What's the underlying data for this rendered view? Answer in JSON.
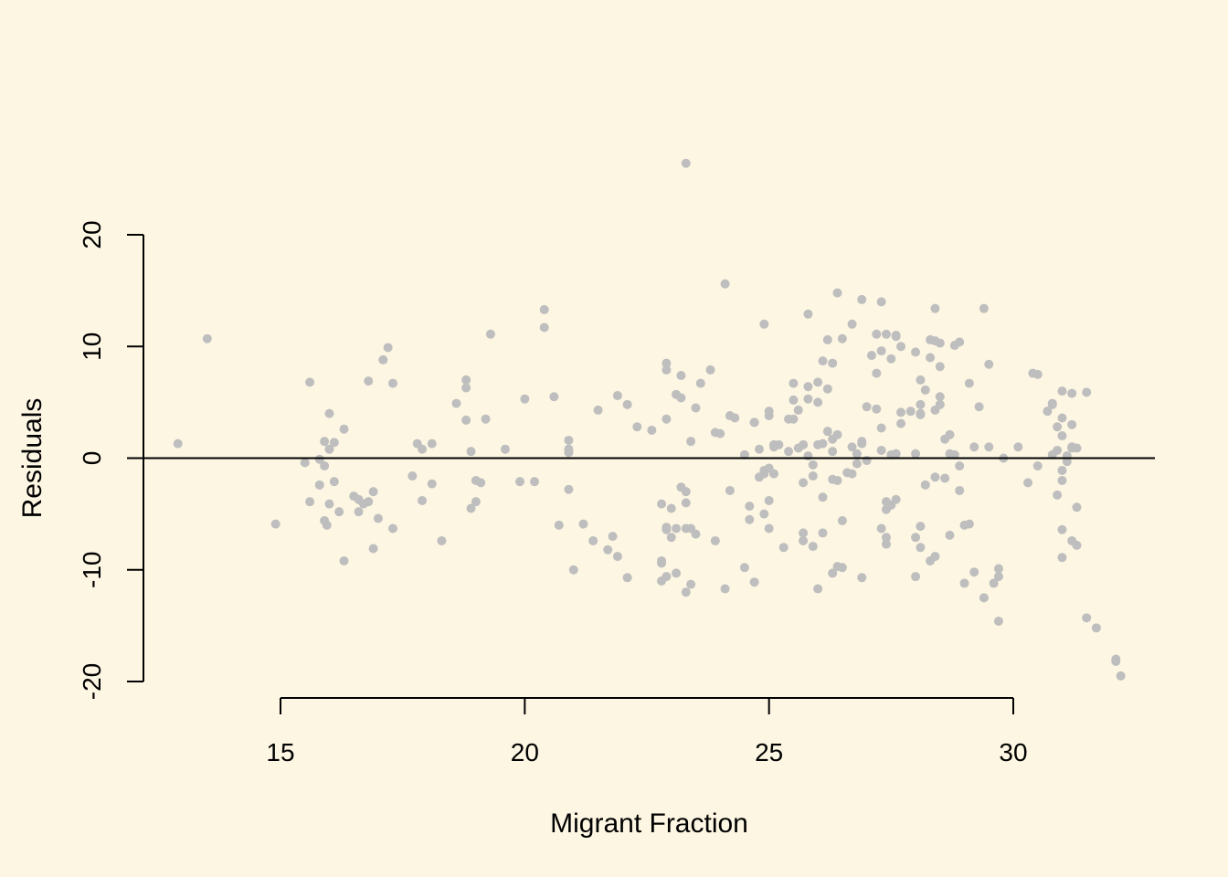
{
  "chart_data": {
    "type": "scatter",
    "title": "",
    "xlabel": "Migrant Fraction",
    "ylabel": "Residuals",
    "x_ticks": [
      15,
      20,
      25,
      30
    ],
    "y_ticks": [
      -20,
      -10,
      0,
      10,
      20
    ],
    "x_tick_labels": [
      "15",
      "20",
      "25",
      "30"
    ],
    "y_tick_labels": [
      "-20",
      "-10",
      "0",
      "10",
      "20"
    ],
    "xlim": [
      12.2,
      32.9
    ],
    "ylim": [
      -21.6,
      27.2
    ],
    "reference_line_y": 0,
    "point_color": "#bebebe",
    "background_color": "#fdf6e3",
    "grid": false,
    "points": [
      [
        12.9,
        1.3
      ],
      [
        13.5,
        10.7
      ],
      [
        14.9,
        -5.9
      ],
      [
        15.5,
        -0.4
      ],
      [
        15.6,
        6.8
      ],
      [
        15.6,
        -3.9
      ],
      [
        15.8,
        -0.1
      ],
      [
        15.8,
        -2.4
      ],
      [
        15.9,
        -0.7
      ],
      [
        15.9,
        1.5
      ],
      [
        15.9,
        -5.6
      ],
      [
        16.0,
        0.8
      ],
      [
        16.0,
        4.0
      ],
      [
        16.0,
        0.8
      ],
      [
        16.0,
        -4.1
      ],
      [
        16.1,
        -2.1
      ],
      [
        16.1,
        1.4
      ],
      [
        16.2,
        -4.8
      ],
      [
        16.3,
        2.6
      ],
      [
        16.3,
        -9.2
      ],
      [
        15.95,
        -6.0
      ],
      [
        16.5,
        -3.4
      ],
      [
        16.6,
        -3.7
      ],
      [
        16.6,
        -4.8
      ],
      [
        16.7,
        -4.1
      ],
      [
        16.8,
        -3.9
      ],
      [
        16.8,
        6.9
      ],
      [
        16.9,
        -3.0
      ],
      [
        16.9,
        -8.1
      ],
      [
        17.0,
        -5.4
      ],
      [
        17.1,
        8.8
      ],
      [
        17.2,
        9.9
      ],
      [
        17.3,
        -6.3
      ],
      [
        17.3,
        6.7
      ],
      [
        17.7,
        -1.6
      ],
      [
        17.8,
        1.3
      ],
      [
        17.9,
        0.8
      ],
      [
        17.9,
        -3.8
      ],
      [
        18.1,
        -2.3
      ],
      [
        18.1,
        1.3
      ],
      [
        18.3,
        -7.4
      ],
      [
        18.6,
        4.9
      ],
      [
        18.8,
        7.0
      ],
      [
        18.8,
        3.4
      ],
      [
        18.8,
        6.3
      ],
      [
        18.9,
        -4.5
      ],
      [
        18.9,
        0.6
      ],
      [
        19.0,
        -2.0
      ],
      [
        19.0,
        -3.9
      ],
      [
        19.1,
        -2.2
      ],
      [
        19.2,
        3.5
      ],
      [
        19.3,
        11.1
      ],
      [
        19.6,
        0.8
      ],
      [
        19.9,
        -2.1
      ],
      [
        20.0,
        5.3
      ],
      [
        20.2,
        -2.1
      ],
      [
        20.4,
        11.7
      ],
      [
        20.4,
        13.3
      ],
      [
        20.6,
        5.5
      ],
      [
        20.7,
        -6.0
      ],
      [
        20.9,
        1.6
      ],
      [
        20.9,
        0.5
      ],
      [
        20.9,
        0.8
      ],
      [
        20.9,
        -2.8
      ],
      [
        21.0,
        -10.0
      ],
      [
        21.2,
        -5.9
      ],
      [
        21.4,
        -7.4
      ],
      [
        21.5,
        4.3
      ],
      [
        21.7,
        -8.2
      ],
      [
        21.8,
        -7.0
      ],
      [
        21.9,
        5.6
      ],
      [
        21.9,
        -8.8
      ],
      [
        22.1,
        4.8
      ],
      [
        22.1,
        -10.7
      ],
      [
        22.3,
        2.8
      ],
      [
        22.6,
        2.5
      ],
      [
        22.8,
        -9.2
      ],
      [
        22.8,
        -9.4
      ],
      [
        22.8,
        -11.0
      ],
      [
        22.8,
        -4.1
      ],
      [
        22.9,
        -6.2
      ],
      [
        22.9,
        8.5
      ],
      [
        22.9,
        7.9
      ],
      [
        22.9,
        3.5
      ],
      [
        22.9,
        -10.6
      ],
      [
        22.9,
        -6.4
      ],
      [
        23.0,
        -7.1
      ],
      [
        23.0,
        -4.5
      ],
      [
        23.1,
        -10.3
      ],
      [
        23.1,
        -6.3
      ],
      [
        23.1,
        5.7
      ],
      [
        23.2,
        7.4
      ],
      [
        23.2,
        5.4
      ],
      [
        23.2,
        -2.6
      ],
      [
        23.3,
        -6.3
      ],
      [
        23.3,
        -3.0
      ],
      [
        23.3,
        -12.0
      ],
      [
        23.3,
        -4.0
      ],
      [
        23.3,
        26.4
      ],
      [
        23.4,
        -6.3
      ],
      [
        23.4,
        -11.3
      ],
      [
        23.4,
        1.5
      ],
      [
        23.5,
        4.5
      ],
      [
        23.5,
        -6.8
      ],
      [
        23.6,
        6.7
      ],
      [
        23.8,
        7.9
      ],
      [
        23.9,
        2.3
      ],
      [
        23.9,
        -7.4
      ],
      [
        24.0,
        2.2
      ],
      [
        24.1,
        15.6
      ],
      [
        24.1,
        -11.7
      ],
      [
        24.2,
        -2.9
      ],
      [
        24.2,
        3.8
      ],
      [
        24.3,
        3.6
      ],
      [
        24.5,
        -9.8
      ],
      [
        24.5,
        0.3
      ],
      [
        24.6,
        -5.5
      ],
      [
        24.6,
        -4.3
      ],
      [
        24.7,
        3.2
      ],
      [
        24.7,
        -11.1
      ],
      [
        24.7,
        3.2
      ],
      [
        24.8,
        -1.7
      ],
      [
        24.8,
        0.8
      ],
      [
        24.9,
        12.0
      ],
      [
        24.9,
        -1.1
      ],
      [
        24.9,
        -5.0
      ],
      [
        24.9,
        -1.4
      ],
      [
        25.0,
        -0.9
      ],
      [
        25.0,
        3.8
      ],
      [
        25.0,
        4.2
      ],
      [
        25.0,
        -3.8
      ],
      [
        25.0,
        -6.3
      ],
      [
        25.1,
        -1.4
      ],
      [
        25.1,
        1.2
      ],
      [
        25.1,
        1.0
      ],
      [
        25.2,
        1.2
      ],
      [
        25.3,
        -8.0
      ],
      [
        25.4,
        0.6
      ],
      [
        25.4,
        3.5
      ],
      [
        25.5,
        6.7
      ],
      [
        25.5,
        5.2
      ],
      [
        25.5,
        3.5
      ],
      [
        25.6,
        4.3
      ],
      [
        25.6,
        0.9
      ],
      [
        25.7,
        1.2
      ],
      [
        25.7,
        -2.2
      ],
      [
        25.7,
        -6.7
      ],
      [
        25.7,
        -7.4
      ],
      [
        25.8,
        12.9
      ],
      [
        25.8,
        6.4
      ],
      [
        25.8,
        5.3
      ],
      [
        25.8,
        0.2
      ],
      [
        25.9,
        -1.6
      ],
      [
        25.9,
        -0.6
      ],
      [
        25.9,
        -7.9
      ],
      [
        26.0,
        6.8
      ],
      [
        26.0,
        5.0
      ],
      [
        26.0,
        -11.7
      ],
      [
        26.0,
        1.2
      ],
      [
        26.1,
        1.3
      ],
      [
        26.1,
        -6.7
      ],
      [
        26.1,
        -3.5
      ],
      [
        26.1,
        8.7
      ],
      [
        26.2,
        6.2
      ],
      [
        26.2,
        10.6
      ],
      [
        26.2,
        2.4
      ],
      [
        26.3,
        -10.3
      ],
      [
        26.3,
        8.5
      ],
      [
        26.3,
        0.6
      ],
      [
        26.3,
        -1.9
      ],
      [
        26.3,
        1.7
      ],
      [
        26.4,
        -2.0
      ],
      [
        26.4,
        2.1
      ],
      [
        26.4,
        14.8
      ],
      [
        26.4,
        -9.7
      ],
      [
        26.5,
        -9.8
      ],
      [
        26.5,
        -5.6
      ],
      [
        26.5,
        10.7
      ],
      [
        26.6,
        -1.3
      ],
      [
        26.7,
        12.0
      ],
      [
        26.7,
        1.0
      ],
      [
        26.7,
        -1.4
      ],
      [
        26.8,
        -0.5
      ],
      [
        26.8,
        0.4
      ],
      [
        26.9,
        1.3
      ],
      [
        26.9,
        14.2
      ],
      [
        26.9,
        1.5
      ],
      [
        26.9,
        -10.7
      ],
      [
        27.0,
        -0.2
      ],
      [
        27.0,
        4.6
      ],
      [
        27.1,
        9.2
      ],
      [
        27.2,
        7.6
      ],
      [
        27.2,
        4.4
      ],
      [
        27.2,
        11.1
      ],
      [
        27.3,
        14.0
      ],
      [
        27.3,
        2.7
      ],
      [
        27.3,
        0.7
      ],
      [
        27.3,
        -6.3
      ],
      [
        27.3,
        9.6
      ],
      [
        27.4,
        -7.1
      ],
      [
        27.4,
        -7.7
      ],
      [
        27.4,
        -4.6
      ],
      [
        27.4,
        -3.9
      ],
      [
        27.4,
        11.1
      ],
      [
        27.5,
        8.9
      ],
      [
        27.5,
        0.3
      ],
      [
        27.5,
        -4.2
      ],
      [
        27.6,
        10.9
      ],
      [
        27.6,
        11.0
      ],
      [
        27.6,
        0.4
      ],
      [
        27.6,
        -3.7
      ],
      [
        27.7,
        3.1
      ],
      [
        27.7,
        4.1
      ],
      [
        27.7,
        10.0
      ],
      [
        27.9,
        4.2
      ],
      [
        28.0,
        9.5
      ],
      [
        28.0,
        0.4
      ],
      [
        28.0,
        -10.6
      ],
      [
        28.0,
        -7.1
      ],
      [
        28.1,
        -6.1
      ],
      [
        28.1,
        4.8
      ],
      [
        28.1,
        7.0
      ],
      [
        28.1,
        3.9
      ],
      [
        28.1,
        4.0
      ],
      [
        28.1,
        -8.0
      ],
      [
        28.2,
        -2.4
      ],
      [
        28.2,
        6.1
      ],
      [
        28.3,
        10.6
      ],
      [
        28.3,
        -9.2
      ],
      [
        28.3,
        9.0
      ],
      [
        28.4,
        -1.7
      ],
      [
        28.4,
        -8.8
      ],
      [
        28.4,
        4.3
      ],
      [
        28.4,
        13.4
      ],
      [
        28.4,
        10.5
      ],
      [
        28.5,
        5.5
      ],
      [
        28.5,
        10.3
      ],
      [
        28.5,
        8.2
      ],
      [
        28.5,
        4.8
      ],
      [
        28.6,
        -1.8
      ],
      [
        28.6,
        1.7
      ],
      [
        28.7,
        -6.9
      ],
      [
        28.7,
        2.1
      ],
      [
        28.7,
        0.4
      ],
      [
        28.8,
        0.3
      ],
      [
        28.8,
        10.1
      ],
      [
        28.9,
        10.4
      ],
      [
        28.9,
        -2.9
      ],
      [
        28.9,
        -0.7
      ],
      [
        29.0,
        -6.0
      ],
      [
        29.0,
        -11.2
      ],
      [
        29.1,
        -5.9
      ],
      [
        29.1,
        6.7
      ],
      [
        29.2,
        1.0
      ],
      [
        29.2,
        -10.2
      ],
      [
        29.3,
        4.6
      ],
      [
        29.4,
        -12.5
      ],
      [
        29.4,
        13.4
      ],
      [
        29.5,
        1.0
      ],
      [
        29.5,
        8.4
      ],
      [
        29.6,
        -11.2
      ],
      [
        29.7,
        -10.6
      ],
      [
        29.7,
        -9.9
      ],
      [
        29.7,
        -14.6
      ],
      [
        29.8,
        0.0
      ],
      [
        30.1,
        1.0
      ],
      [
        30.3,
        -2.2
      ],
      [
        30.4,
        7.6
      ],
      [
        30.5,
        7.5
      ],
      [
        30.5,
        -0.7
      ],
      [
        30.7,
        4.2
      ],
      [
        30.8,
        4.9
      ],
      [
        30.8,
        0.3
      ],
      [
        30.8,
        4.8
      ],
      [
        30.9,
        2.8
      ],
      [
        30.9,
        -3.3
      ],
      [
        30.9,
        0.7
      ],
      [
        31.0,
        3.6
      ],
      [
        31.0,
        2.0
      ],
      [
        31.0,
        -2.0
      ],
      [
        31.0,
        -1.1
      ],
      [
        31.0,
        -6.4
      ],
      [
        31.0,
        -8.9
      ],
      [
        31.0,
        6.0
      ],
      [
        31.1,
        0.2
      ],
      [
        31.1,
        -0.3
      ],
      [
        31.2,
        1.0
      ],
      [
        31.2,
        3.0
      ],
      [
        31.2,
        0.9
      ],
      [
        31.2,
        -7.4
      ],
      [
        31.2,
        5.8
      ],
      [
        31.3,
        -4.4
      ],
      [
        31.3,
        -7.8
      ],
      [
        31.3,
        0.9
      ],
      [
        31.5,
        -14.3
      ],
      [
        31.5,
        5.9
      ],
      [
        31.7,
        -15.2
      ],
      [
        32.1,
        -18.0
      ],
      [
        32.1,
        -18.2
      ],
      [
        32.2,
        -19.5
      ]
    ]
  }
}
